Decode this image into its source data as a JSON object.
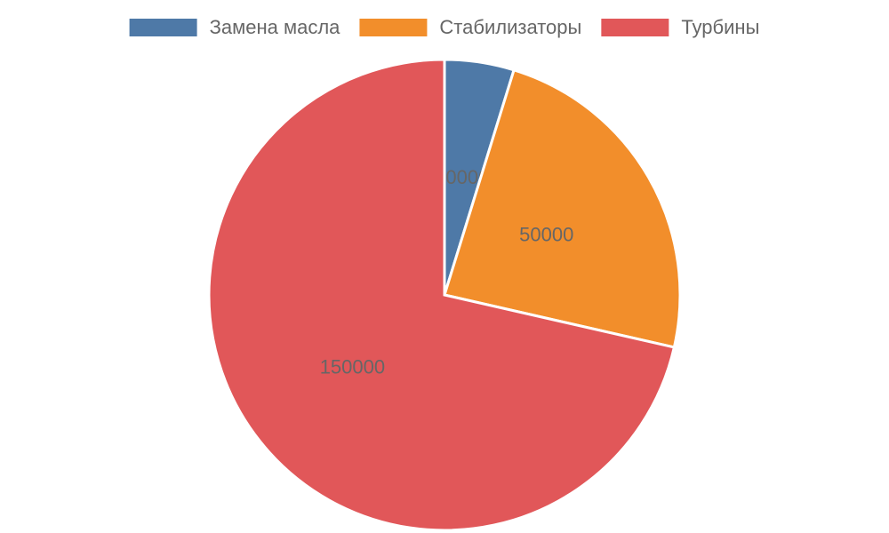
{
  "chart_data": {
    "type": "pie",
    "categories": [
      "Замена масла",
      "Стабилизаторы",
      "Турбины"
    ],
    "values": [
      10000,
      50000,
      150000
    ],
    "colors": [
      "#4e79a7",
      "#f28e2b",
      "#e15759"
    ],
    "legend": "top"
  }
}
